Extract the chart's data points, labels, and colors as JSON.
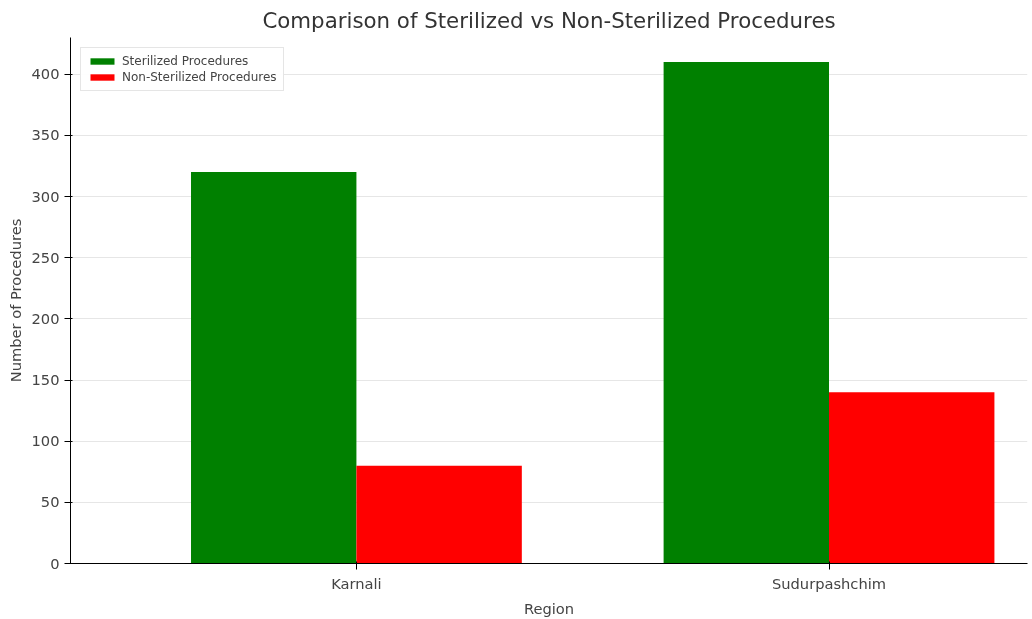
{
  "chart_data": {
    "type": "bar",
    "title": "Comparison of Sterilized vs Non-Sterilized Procedures",
    "xlabel": "Region",
    "ylabel": "Number of Procedures",
    "categories": [
      "Karnali",
      "Sudurpashchim"
    ],
    "series": [
      {
        "name": "Sterilized Procedures",
        "color": "#008000",
        "values": [
          320,
          410
        ]
      },
      {
        "name": "Non-Sterilized Procedures",
        "color": "#ff0000",
        "values": [
          80,
          140
        ]
      }
    ],
    "ylim": [
      0,
      430
    ],
    "yticks": [
      0,
      50,
      100,
      150,
      200,
      250,
      300,
      350,
      400
    ],
    "grid": "y",
    "legend": "top left"
  }
}
